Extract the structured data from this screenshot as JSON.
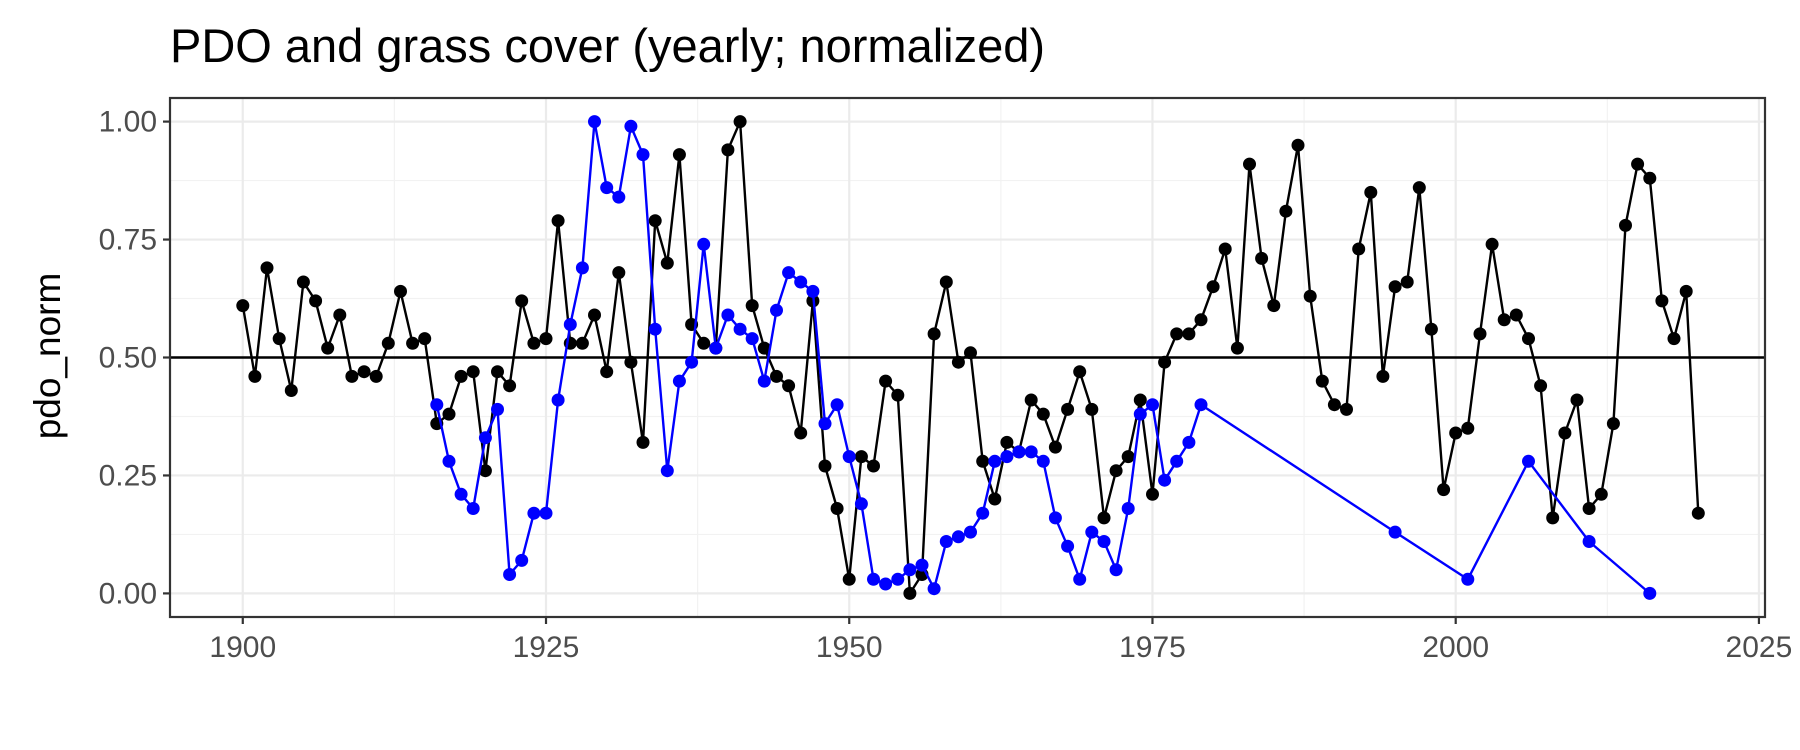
{
  "chart_data": {
    "type": "line",
    "title": "PDO and grass cover (yearly; normalized)",
    "xlabel": "",
    "ylabel": "pdo_norm",
    "xlim": [
      1894,
      2025.5
    ],
    "ylim": [
      -0.05,
      1.05
    ],
    "x_ticks": [
      1900,
      1925,
      1950,
      1975,
      2000,
      2025
    ],
    "x_tick_labels": [
      "1900",
      "1925",
      "1950",
      "1975",
      "2000",
      "2025"
    ],
    "y_ticks": [
      0,
      0.25,
      0.5,
      0.75,
      1.0
    ],
    "y_tick_labels": [
      "0.00",
      "0.25",
      "0.50",
      "0.75",
      "1.00"
    ],
    "reference_line": {
      "y": 0.5,
      "color": "#000000"
    },
    "grid": true,
    "theme": "bw",
    "legend": "none",
    "series": [
      {
        "color": "#000000",
        "x": [
          1900,
          1901,
          1902,
          1903,
          1904,
          1905,
          1906,
          1907,
          1908,
          1909,
          1910,
          1911,
          1912,
          1913,
          1914,
          1915,
          1916,
          1917,
          1918,
          1919,
          1920,
          1921,
          1922,
          1923,
          1924,
          1925,
          1926,
          1927,
          1928,
          1929,
          1930,
          1931,
          1932,
          1933,
          1934,
          1935,
          1936,
          1937,
          1938,
          1939,
          1940,
          1941,
          1942,
          1943,
          1944,
          1945,
          1946,
          1947,
          1948,
          1949,
          1950,
          1951,
          1952,
          1953,
          1954,
          1955,
          1956,
          1957,
          1958,
          1959,
          1960,
          1961,
          1962,
          1963,
          1964,
          1965,
          1966,
          1967,
          1968,
          1969,
          1970,
          1971,
          1972,
          1973,
          1974,
          1975,
          1976,
          1977,
          1978,
          1979,
          1980,
          1981,
          1982,
          1983,
          1984,
          1985,
          1986,
          1987,
          1988,
          1989,
          1990,
          1991,
          1992,
          1993,
          1994,
          1995,
          1996,
          1997,
          1998,
          1999,
          2000,
          2001,
          2002,
          2003,
          2004,
          2005,
          2006,
          2007,
          2008,
          2009,
          2010,
          2011,
          2012,
          2013,
          2014,
          2015,
          2016,
          2017,
          2018,
          2019,
          2020
        ],
        "y": [
          0.61,
          0.46,
          0.69,
          0.54,
          0.43,
          0.66,
          0.62,
          0.52,
          0.59,
          0.46,
          0.47,
          0.46,
          0.53,
          0.64,
          0.53,
          0.54,
          0.36,
          0.38,
          0.46,
          0.47,
          0.26,
          0.47,
          0.44,
          0.62,
          0.53,
          0.54,
          0.79,
          0.53,
          0.53,
          0.59,
          0.47,
          0.68,
          0.49,
          0.32,
          0.79,
          0.7,
          0.93,
          0.57,
          0.53,
          0.52,
          0.94,
          1.0,
          0.61,
          0.52,
          0.46,
          0.44,
          0.34,
          0.62,
          0.27,
          0.18,
          0.03,
          0.29,
          0.27,
          0.45,
          0.42,
          0.0,
          0.04,
          0.55,
          0.66,
          0.49,
          0.51,
          0.28,
          0.2,
          0.32,
          0.3,
          0.41,
          0.38,
          0.31,
          0.39,
          0.47,
          0.39,
          0.16,
          0.26,
          0.29,
          0.41,
          0.21,
          0.49,
          0.55,
          0.55,
          0.58,
          0.65,
          0.73,
          0.52,
          0.91,
          0.71,
          0.61,
          0.81,
          0.95,
          0.63,
          0.45,
          0.4,
          0.39,
          0.73,
          0.85,
          0.46,
          0.65,
          0.66,
          0.86,
          0.56,
          0.22,
          0.34,
          0.35,
          0.55,
          0.74,
          0.58,
          0.59,
          0.54,
          0.44,
          0.16,
          0.34,
          0.41,
          0.18,
          0.21,
          0.36,
          0.78,
          0.91,
          0.88,
          0.62,
          0.54,
          0.64,
          0.17
        ]
      },
      {
        "color": "#0000ff",
        "x": [
          1916,
          1917,
          1918,
          1919,
          1920,
          1921,
          1922,
          1923,
          1924,
          1925,
          1926,
          1927,
          1928,
          1929,
          1930,
          1931,
          1932,
          1933,
          1934,
          1935,
          1936,
          1937,
          1938,
          1939,
          1940,
          1941,
          1942,
          1943,
          1944,
          1945,
          1946,
          1947,
          1948,
          1949,
          1950,
          1951,
          1952,
          1953,
          1954,
          1955,
          1956,
          1957,
          1958,
          1959,
          1960,
          1961,
          1962,
          1963,
          1964,
          1965,
          1966,
          1967,
          1968,
          1969,
          1970,
          1971,
          1972,
          1973,
          1974,
          1975,
          1976,
          1977,
          1978,
          1979,
          1995,
          2001,
          2006,
          2011,
          2016
        ],
        "y": [
          0.4,
          0.28,
          0.21,
          0.18,
          0.33,
          0.39,
          0.04,
          0.07,
          0.17,
          0.17,
          0.41,
          0.57,
          0.69,
          1.0,
          0.86,
          0.84,
          0.99,
          0.93,
          0.56,
          0.26,
          0.45,
          0.49,
          0.74,
          0.52,
          0.59,
          0.56,
          0.54,
          0.45,
          0.6,
          0.68,
          0.66,
          0.64,
          0.36,
          0.4,
          0.29,
          0.19,
          0.03,
          0.02,
          0.03,
          0.05,
          0.06,
          0.01,
          0.11,
          0.12,
          0.13,
          0.17,
          0.28,
          0.29,
          0.3,
          0.3,
          0.28,
          0.16,
          0.1,
          0.03,
          0.13,
          0.11,
          0.05,
          0.18,
          0.38,
          0.4,
          0.24,
          0.28,
          0.32,
          0.4,
          0.13,
          0.03,
          0.28,
          0.11,
          0.0
        ]
      }
    ]
  }
}
